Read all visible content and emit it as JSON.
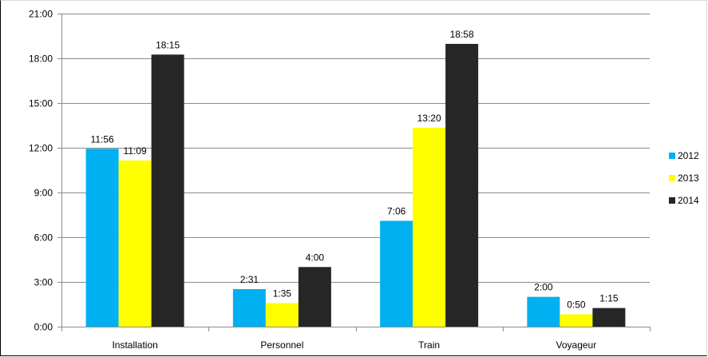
{
  "chart_data": {
    "type": "bar",
    "title": "",
    "xlabel": "",
    "ylabel": "",
    "categories": [
      "Installation",
      "Personnel",
      "Train",
      "Voyageur"
    ],
    "series": [
      {
        "name": "2012",
        "color": "#00b0f0",
        "values": [
          11.933,
          2.517,
          7.1,
          2.0
        ],
        "labels": [
          "11:56",
          "2:31",
          "7:06",
          "2:00"
        ]
      },
      {
        "name": "2013",
        "color": "#ffff00",
        "values": [
          11.15,
          1.583,
          13.333,
          0.833
        ],
        "labels": [
          "11:09",
          "1:35",
          "13:20",
          "0:50"
        ]
      },
      {
        "name": "2014",
        "color": "#262626",
        "values": [
          18.25,
          4.0,
          18.967,
          1.25
        ],
        "labels": [
          "18:15",
          "4:00",
          "18:58",
          "1:15"
        ]
      }
    ],
    "ylim": [
      0,
      21
    ],
    "yticks": [
      0,
      3,
      6,
      9,
      12,
      15,
      18,
      21
    ],
    "ytick_labels": [
      "0:00",
      "3:00",
      "6:00",
      "9:00",
      "12:00",
      "15:00",
      "18:00",
      "21:00"
    ],
    "grid": true,
    "legend_position": "right"
  }
}
